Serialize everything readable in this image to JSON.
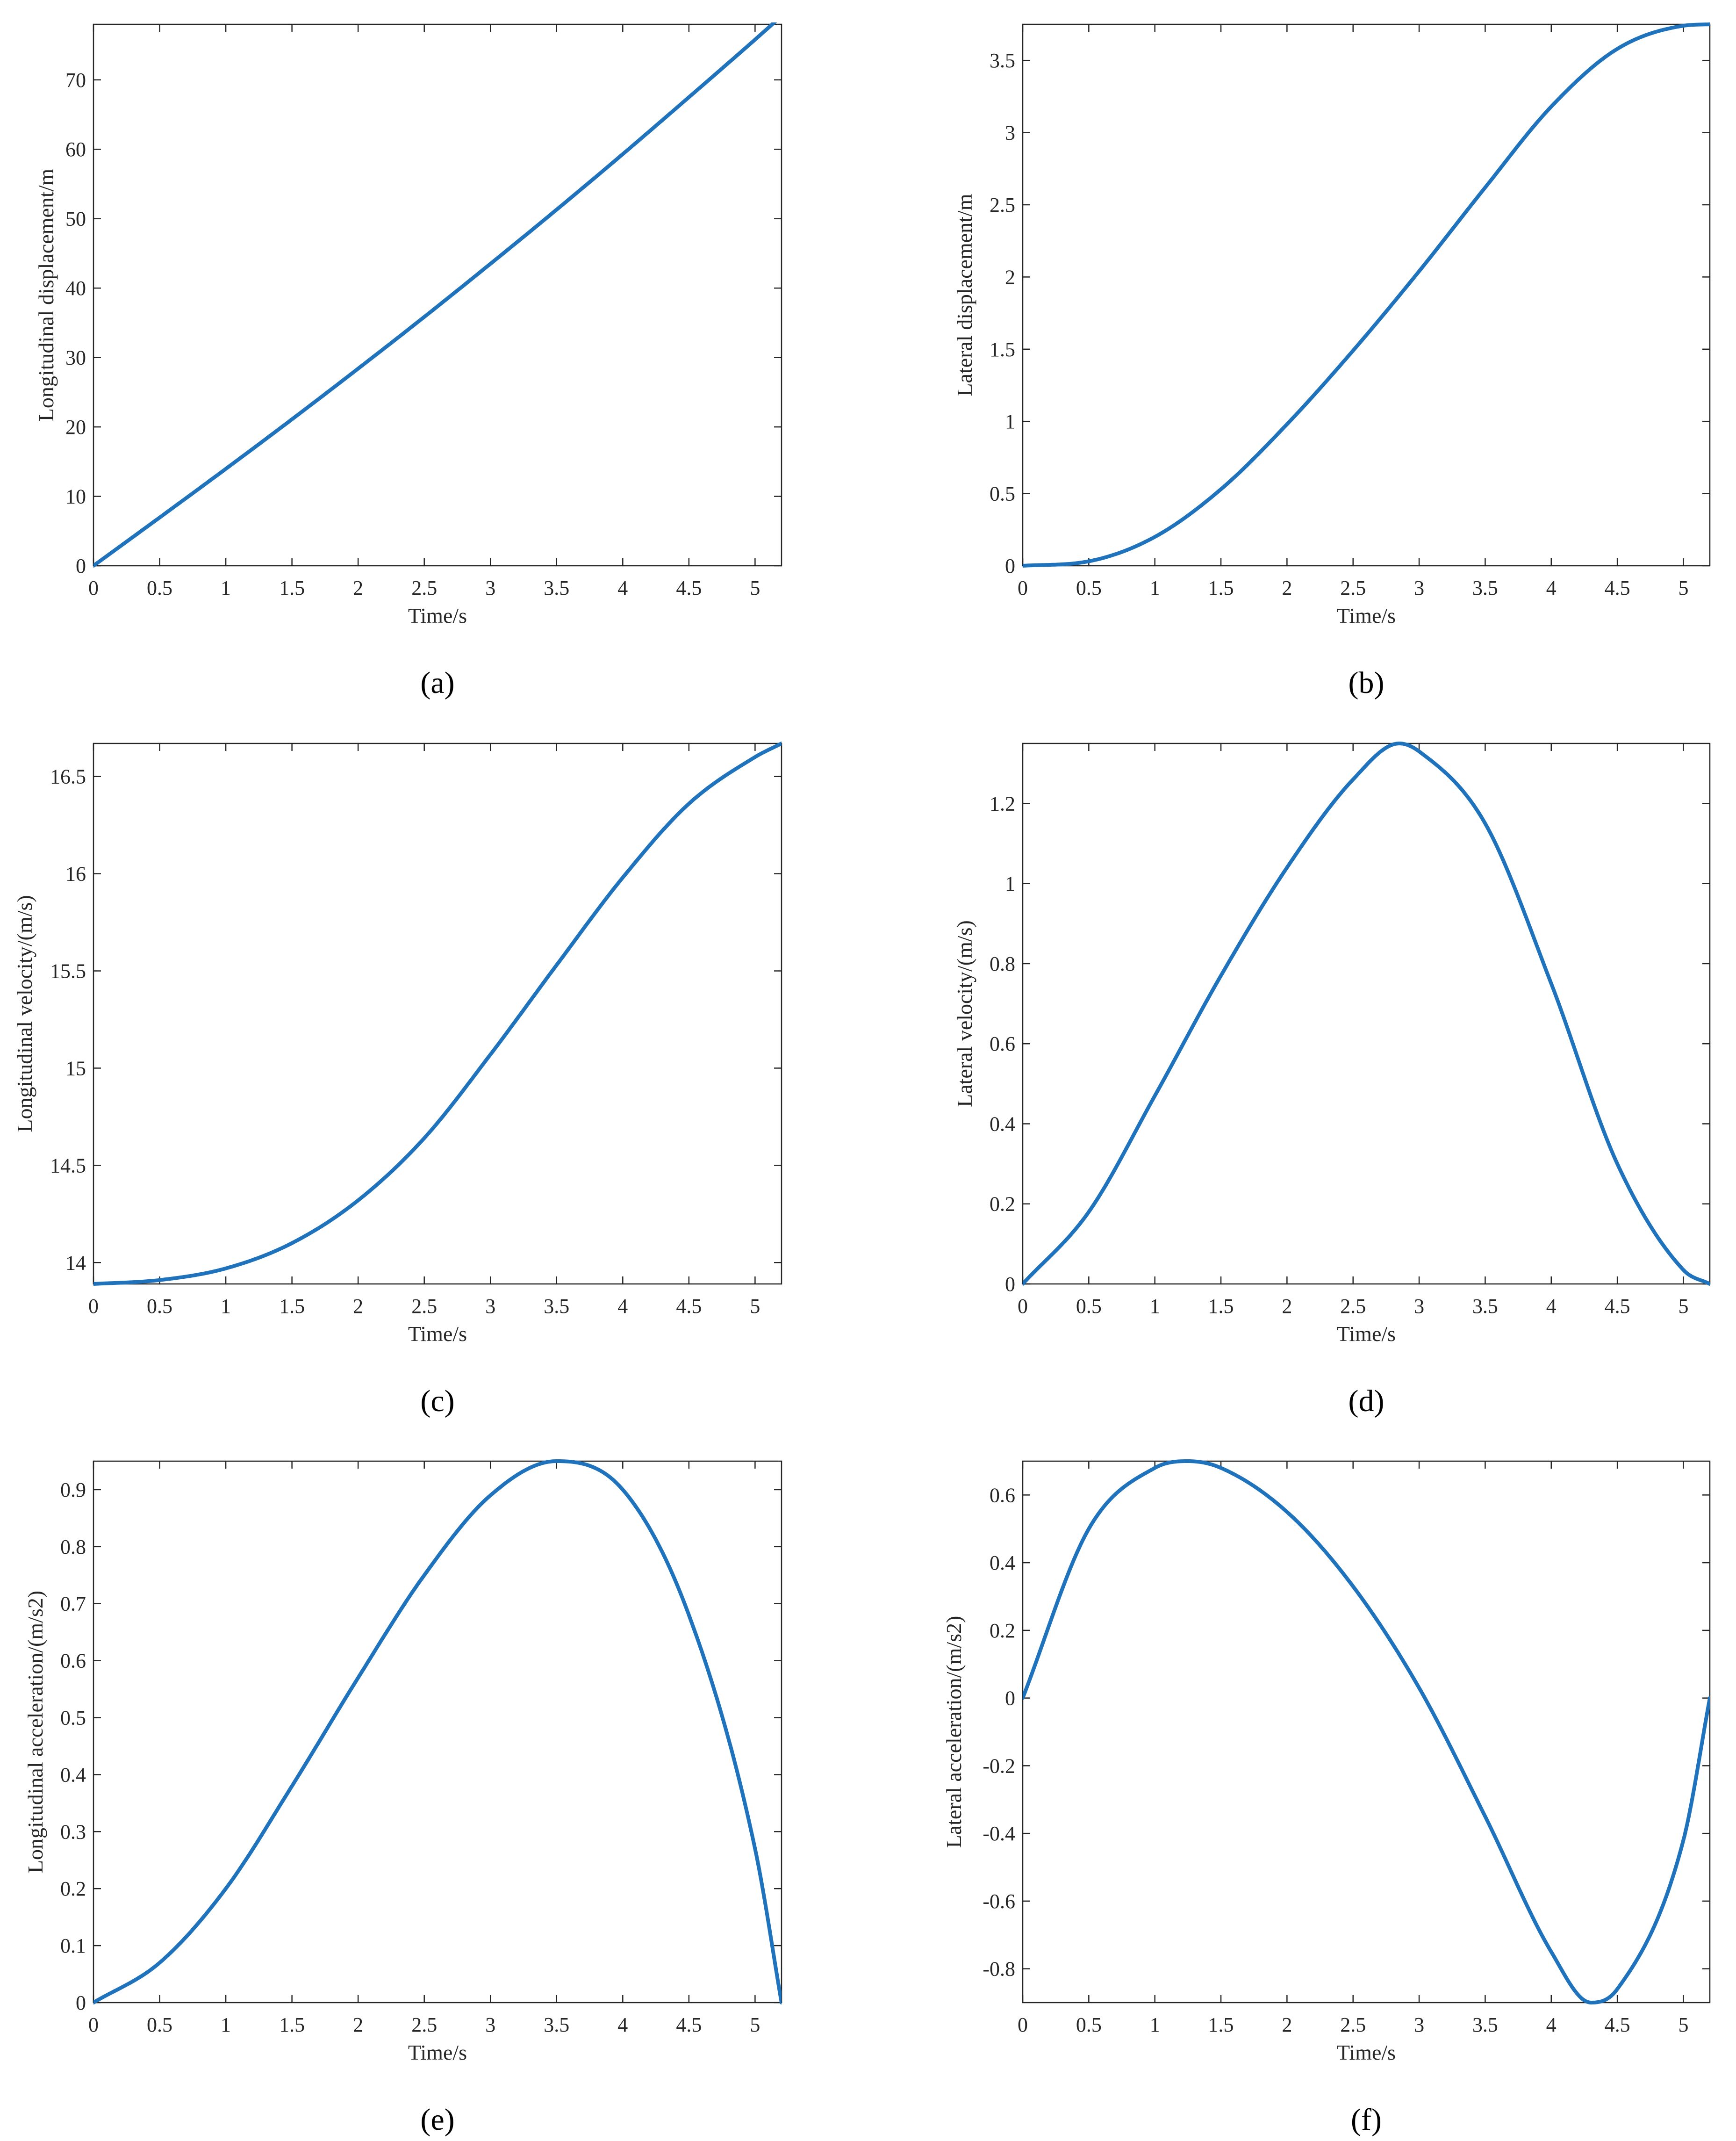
{
  "colors": {
    "line": "#1f72bc",
    "axis": "#262626",
    "background": "#ffffff"
  },
  "chart_data": [
    {
      "id": "a",
      "panel_label": "(a)",
      "type": "line",
      "xlabel": "Time/s",
      "ylabel": "Longitudinal displacement/m",
      "xlim": [
        0,
        5.2
      ],
      "ylim": [
        0,
        78
      ],
      "xticks": [
        "0",
        "0.5",
        "1",
        "1.5",
        "2",
        "2.5",
        "3",
        "3.5",
        "4",
        "4.5",
        "5"
      ],
      "yticks": [
        "0",
        "10",
        "20",
        "30",
        "40",
        "50",
        "60",
        "70"
      ],
      "grid": false,
      "series": [
        {
          "x": [
            0,
            0.5,
            1,
            1.5,
            2,
            2.5,
            3,
            3.5,
            4,
            4.5,
            5,
            5.2
          ],
          "y": [
            0,
            6.95,
            13.96,
            21.1,
            28.4,
            35.85,
            43.5,
            51.3,
            59.3,
            67.5,
            75.8,
            79.2
          ]
        }
      ]
    },
    {
      "id": "b",
      "panel_label": "(b)",
      "type": "line",
      "xlabel": "Time/s",
      "ylabel": "Lateral displacement/m",
      "xlim": [
        0,
        5.2
      ],
      "ylim": [
        0,
        3.75
      ],
      "xticks": [
        "0",
        "0.5",
        "1",
        "1.5",
        "2",
        "2.5",
        "3",
        "3.5",
        "4",
        "4.5",
        "5"
      ],
      "yticks": [
        "0",
        "0.5",
        "1",
        "1.5",
        "2",
        "2.5",
        "3",
        "3.5"
      ],
      "grid": false,
      "series": [
        {
          "x": [
            0,
            0.5,
            1,
            1.5,
            2,
            2.5,
            3,
            3.5,
            4,
            4.5,
            5,
            5.2
          ],
          "y": [
            0,
            0.031,
            0.2,
            0.53,
            0.98,
            1.49,
            2.04,
            2.62,
            3.18,
            3.58,
            3.74,
            3.75
          ]
        }
      ]
    },
    {
      "id": "c",
      "panel_label": "(c)",
      "type": "line",
      "xlabel": "Time/s",
      "ylabel": "Longitudinal velocity/(m/s)",
      "xlim": [
        0,
        5.2
      ],
      "ylim": [
        13.89,
        16.67
      ],
      "xticks": [
        "0",
        "0.5",
        "1",
        "1.5",
        "2",
        "2.5",
        "3",
        "3.5",
        "4",
        "4.5",
        "5"
      ],
      "yticks": [
        "14",
        "14.5",
        "15",
        "15.5",
        "16",
        "16.5"
      ],
      "grid": false,
      "series": [
        {
          "x": [
            0,
            0.5,
            1,
            1.5,
            2,
            2.5,
            3,
            3.5,
            4,
            4.5,
            5,
            5.2
          ],
          "y": [
            13.89,
            13.91,
            13.97,
            14.1,
            14.32,
            14.64,
            15.07,
            15.53,
            15.98,
            16.36,
            16.6,
            16.67
          ]
        }
      ]
    },
    {
      "id": "d",
      "panel_label": "(d)",
      "type": "line",
      "xlabel": "Time/s",
      "ylabel": "Lateral velocity/(m/s)",
      "xlim": [
        0,
        5.2
      ],
      "ylim": [
        0,
        1.35
      ],
      "xticks": [
        "0",
        "0.5",
        "1",
        "1.5",
        "2",
        "2.5",
        "3",
        "3.5",
        "4",
        "4.5",
        "5"
      ],
      "yticks": [
        "0",
        "0.2",
        "0.4",
        "0.6",
        "0.8",
        "1",
        "1.2"
      ],
      "grid": false,
      "series": [
        {
          "x": [
            0,
            0.5,
            1,
            1.5,
            2,
            2.5,
            2.85,
            3,
            3.5,
            4,
            4.5,
            5,
            5.2
          ],
          "y": [
            0,
            0.18,
            0.47,
            0.77,
            1.04,
            1.26,
            1.35,
            1.33,
            1.15,
            0.75,
            0.3,
            0.035,
            0
          ]
        }
      ]
    },
    {
      "id": "e",
      "panel_label": "(e)",
      "type": "line",
      "xlabel": "Time/s",
      "ylabel": "Longitudinal acceleration/(m/s2)",
      "xlim": [
        0,
        5.2
      ],
      "ylim": [
        0,
        0.95
      ],
      "xticks": [
        "0",
        "0.5",
        "1",
        "1.5",
        "2",
        "2.5",
        "3",
        "3.5",
        "4",
        "4.5",
        "5"
      ],
      "yticks": [
        "0",
        "0.1",
        "0.2",
        "0.3",
        "0.4",
        "0.5",
        "0.6",
        "0.7",
        "0.8",
        "0.9"
      ],
      "grid": false,
      "series": [
        {
          "x": [
            0,
            0.5,
            1,
            1.5,
            2,
            2.5,
            3,
            3.5,
            4,
            4.5,
            5,
            5.2
          ],
          "y": [
            0,
            0.07,
            0.2,
            0.38,
            0.57,
            0.75,
            0.89,
            0.95,
            0.9,
            0.68,
            0.27,
            0
          ]
        }
      ]
    },
    {
      "id": "f",
      "panel_label": "(f)",
      "type": "line",
      "xlabel": "Time/s",
      "ylabel": "Lateral acceleration/(m/s2)",
      "xlim": [
        0,
        5.2
      ],
      "ylim": [
        -0.9,
        0.7
      ],
      "xticks": [
        "0",
        "0.5",
        "1",
        "1.5",
        "2",
        "2.5",
        "3",
        "3.5",
        "4",
        "4.5",
        "5"
      ],
      "yticks": [
        "-0.8",
        "-0.6",
        "-0.4",
        "-0.2",
        "0",
        "0.2",
        "0.4",
        "0.6"
      ],
      "grid": false,
      "series": [
        {
          "x": [
            0,
            0.5,
            1,
            1.25,
            1.5,
            2,
            2.5,
            3,
            3.5,
            4,
            4.3,
            4.5,
            5,
            5.2
          ],
          "y": [
            0,
            0.5,
            0.68,
            0.7,
            0.68,
            0.55,
            0.33,
            0.03,
            -0.35,
            -0.75,
            -0.9,
            -0.86,
            -0.42,
            0
          ]
        }
      ]
    }
  ]
}
